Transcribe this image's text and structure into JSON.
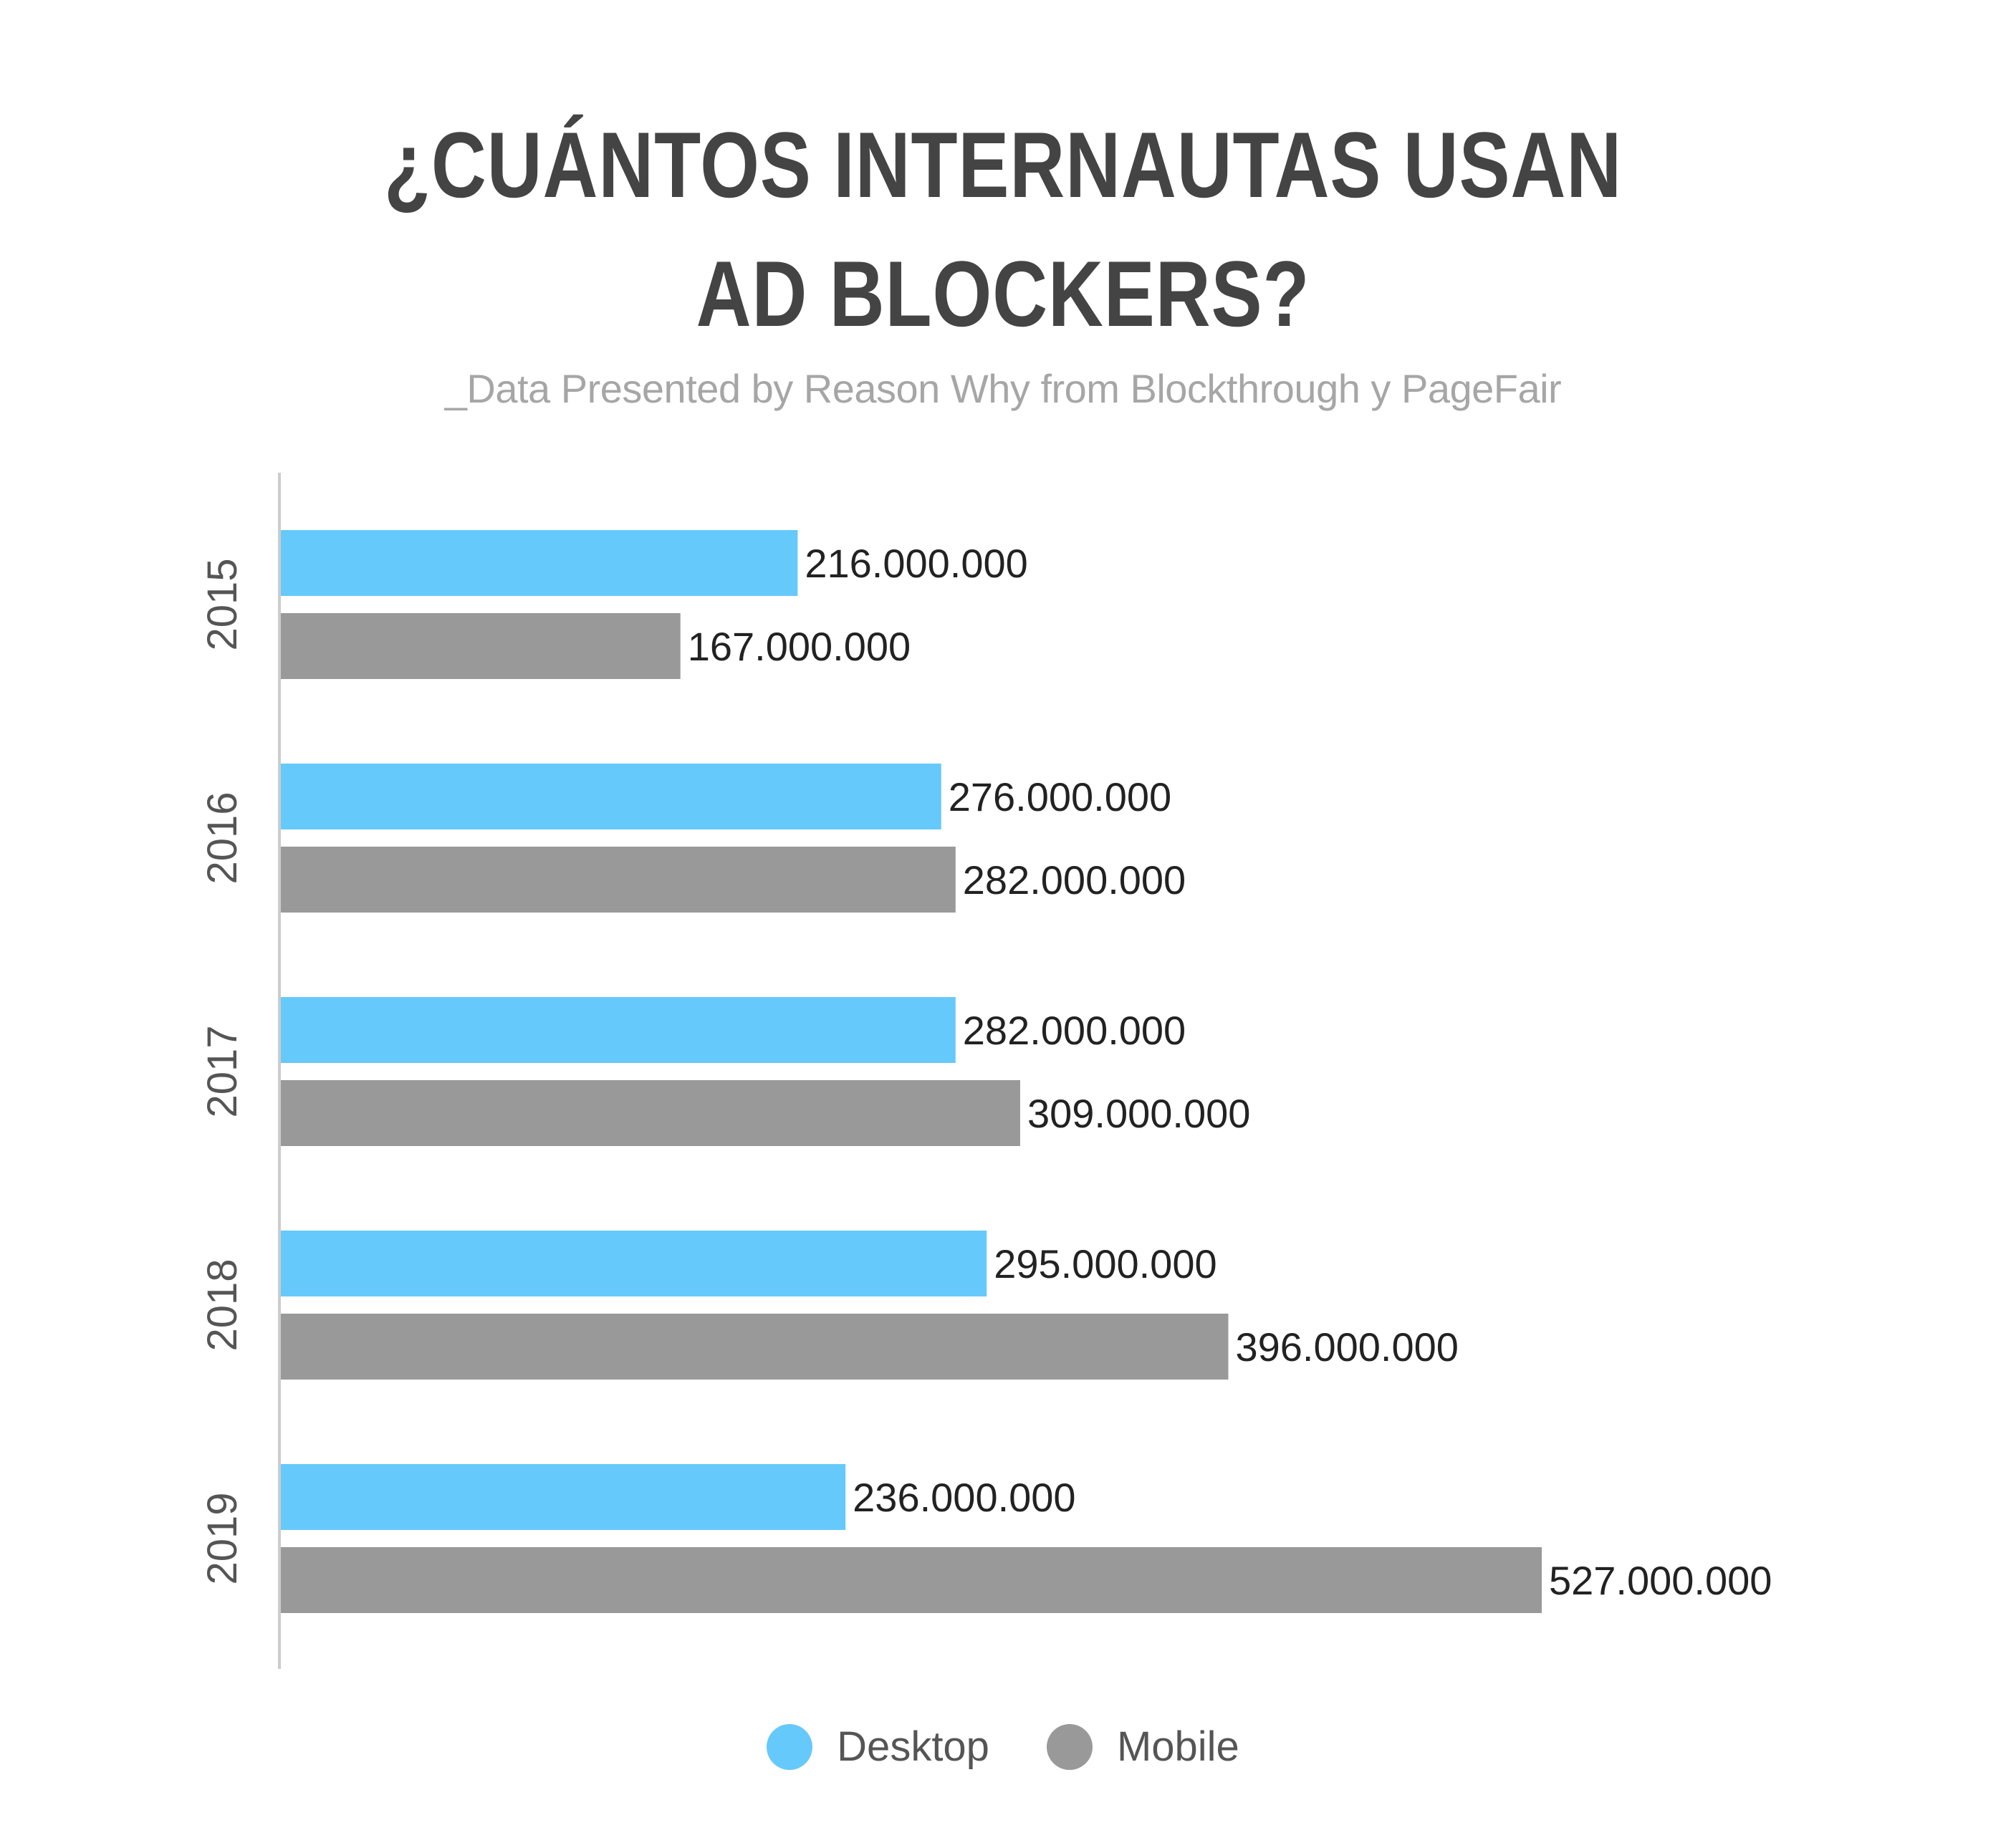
{
  "title_lines": [
    "¿CUÁNTOS INTERNAUTAS USAN",
    "AD BLOCKERS?"
  ],
  "subtitle": "_Data Presented by Reason Why from Blockthrough y PageFair",
  "colors": {
    "desktop": "#66c9fb",
    "mobile": "#999999",
    "axis": "#cccccc",
    "label": "#222222",
    "category": "#555555"
  },
  "chart_data": {
    "type": "bar",
    "orientation": "horizontal",
    "title": "¿CUÁNTOS INTERNAUTAS USAN AD BLOCKERS?",
    "subtitle": "_Data Presented by Reason Why from Blockthrough y PageFair",
    "categories": [
      "2015",
      "2016",
      "2017",
      "2018",
      "2019"
    ],
    "series": [
      {
        "name": "Desktop",
        "values": [
          216000000,
          276000000,
          282000000,
          295000000,
          236000000
        ],
        "labels": [
          "216.000.000",
          "276.000.000",
          "282.000.000",
          "295.000.000",
          "236.000.000"
        ]
      },
      {
        "name": "Mobile",
        "values": [
          167000000,
          282000000,
          309000000,
          396000000,
          527000000
        ],
        "labels": [
          "167.000.000",
          "282.000.000",
          "309.000.000",
          "396.000.000",
          "527.000.000"
        ]
      }
    ],
    "xlim": [
      0,
      527000000
    ],
    "grid": false,
    "legend_position": "bottom-center"
  },
  "legend": [
    {
      "name": "Desktop",
      "color": "#66c9fb"
    },
    {
      "name": "Mobile",
      "color": "#999999"
    }
  ]
}
